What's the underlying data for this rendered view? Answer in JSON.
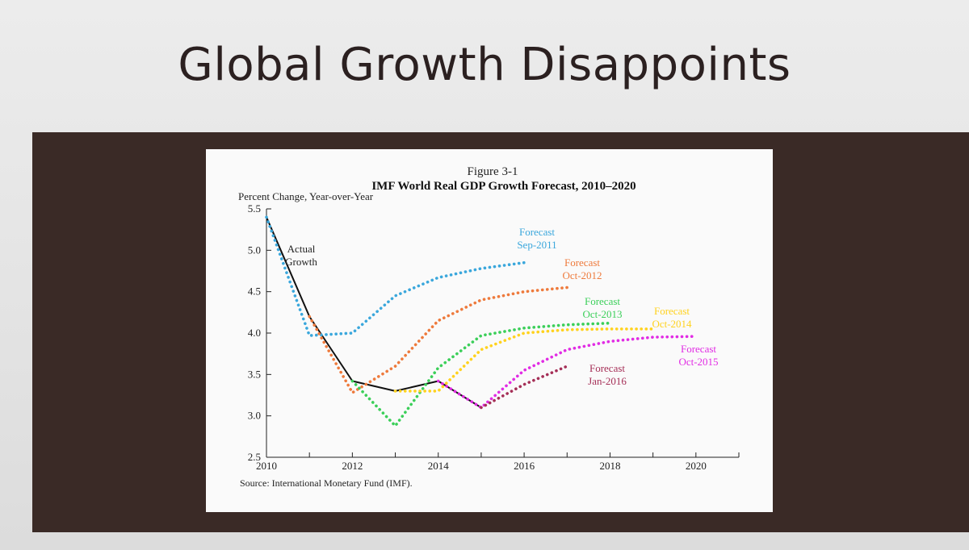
{
  "slide": {
    "title": "Global Growth Disappoints"
  },
  "chart_data": {
    "type": "line",
    "figure_label": "Figure 3-1",
    "title": "IMF World Real GDP Growth Forecast, 2010–2020",
    "ylabel": "Percent Change, Year-over-Year",
    "xlabel": "",
    "source": "Source: International Monetary Fund (IMF).",
    "xlim": [
      2010,
      2021
    ],
    "ylim": [
      2.5,
      5.5
    ],
    "x_ticks": [
      2010,
      2012,
      2014,
      2016,
      2018,
      2020
    ],
    "y_ticks": [
      2.5,
      3.0,
      3.5,
      4.0,
      4.5,
      5.0,
      5.5
    ],
    "y_tick_labels": [
      "2.5",
      "3.0",
      "3.5",
      "4.0",
      "4.5",
      "5.0",
      "5.5"
    ],
    "grid": false,
    "series": [
      {
        "name": "Actual Growth",
        "label_lines": [
          "Actual",
          "Growth"
        ],
        "style": "solid",
        "color": "#111111",
        "points": [
          [
            2010,
            5.4
          ],
          [
            2011,
            4.2
          ],
          [
            2012,
            3.42
          ],
          [
            2013,
            3.3
          ],
          [
            2014,
            3.42
          ],
          [
            2015,
            3.1
          ]
        ]
      },
      {
        "name": "Forecast Sep-2011",
        "label_lines": [
          "Forecast",
          "Sep-2011"
        ],
        "style": "dotted",
        "color": "#3aa7dc",
        "points": [
          [
            2010,
            5.4
          ],
          [
            2011,
            3.97
          ],
          [
            2012,
            4.0
          ],
          [
            2013,
            4.45
          ],
          [
            2014,
            4.67
          ],
          [
            2015,
            4.78
          ],
          [
            2016,
            4.85
          ]
        ]
      },
      {
        "name": "Forecast Oct-2012",
        "label_lines": [
          "Forecast",
          "Oct-2012"
        ],
        "style": "dotted",
        "color": "#ee7a3c",
        "points": [
          [
            2011,
            4.2
          ],
          [
            2012,
            3.28
          ],
          [
            2013,
            3.6
          ],
          [
            2014,
            4.15
          ],
          [
            2015,
            4.4
          ],
          [
            2016,
            4.5
          ],
          [
            2017,
            4.55
          ]
        ]
      },
      {
        "name": "Forecast Oct-2013",
        "label_lines": [
          "Forecast",
          "Oct-2013"
        ],
        "style": "dotted",
        "color": "#3bcf59",
        "points": [
          [
            2012,
            3.42
          ],
          [
            2013,
            2.88
          ],
          [
            2014,
            3.58
          ],
          [
            2015,
            3.97
          ],
          [
            2016,
            4.06
          ],
          [
            2017,
            4.1
          ],
          [
            2018,
            4.12
          ]
        ]
      },
      {
        "name": "Forecast Oct-2014",
        "label_lines": [
          "Forecast",
          "Oct-2014"
        ],
        "style": "dotted",
        "color": "#ffd21e",
        "points": [
          [
            2013,
            3.3
          ],
          [
            2014,
            3.3
          ],
          [
            2015,
            3.8
          ],
          [
            2016,
            4.0
          ],
          [
            2017,
            4.04
          ],
          [
            2018,
            4.05
          ],
          [
            2019,
            4.05
          ]
        ]
      },
      {
        "name": "Forecast Oct-2015",
        "label_lines": [
          "Forecast",
          "Oct-2015"
        ],
        "style": "dotted",
        "color": "#e12ce4",
        "points": [
          [
            2014,
            3.42
          ],
          [
            2015,
            3.1
          ],
          [
            2016,
            3.55
          ],
          [
            2017,
            3.8
          ],
          [
            2018,
            3.9
          ],
          [
            2019,
            3.95
          ],
          [
            2020,
            3.96
          ]
        ]
      },
      {
        "name": "Forecast Jan-2016",
        "label_lines": [
          "Forecast",
          "Jan-2016"
        ],
        "style": "dotted",
        "color": "#a52f57",
        "points": [
          [
            2015,
            3.1
          ],
          [
            2016,
            3.38
          ],
          [
            2017,
            3.6
          ]
        ]
      }
    ]
  }
}
